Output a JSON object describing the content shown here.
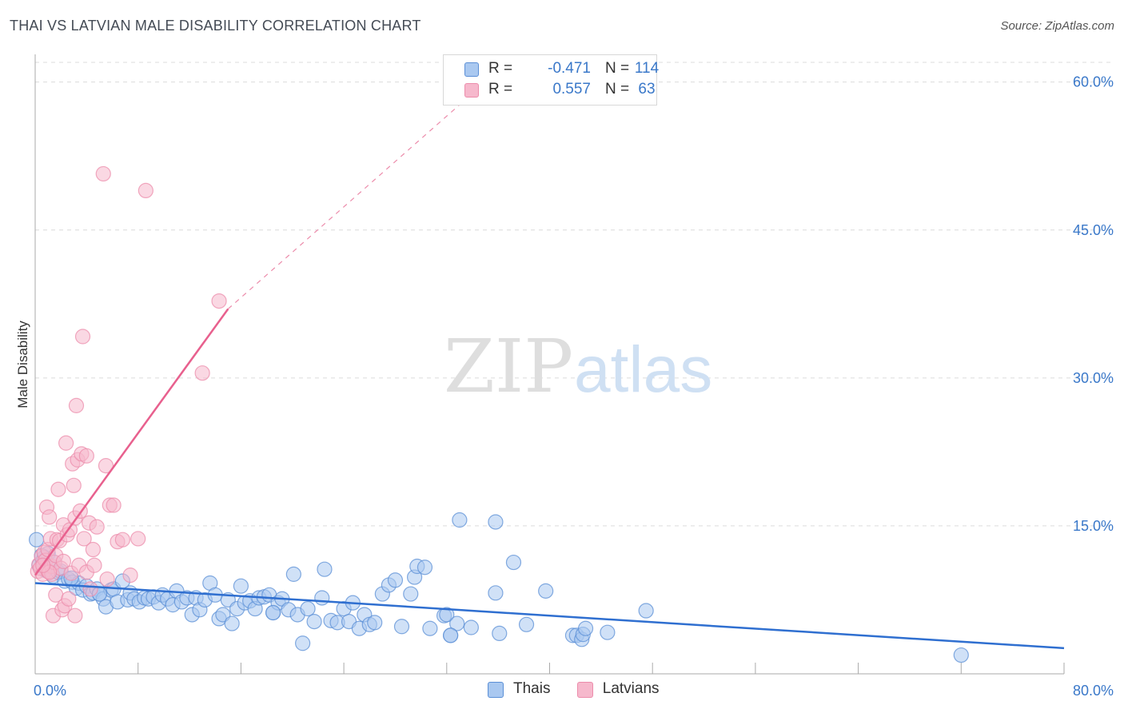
{
  "title": "THAI VS LATVIAN MALE DISABILITY CORRELATION CHART",
  "source": "Source: ZipAtlas.com",
  "watermark": {
    "left": "ZIP",
    "right": "atlas"
  },
  "colors": {
    "thais_fill": "#a9c8f0",
    "thais_stroke": "#5b8fd6",
    "thais_line": "#2f6fd0",
    "latvians_fill": "#f6b8cc",
    "latvians_stroke": "#ec8cab",
    "latvians_line": "#e8608e",
    "tick_text": "#3a78c9",
    "grid": "#dcdcdc"
  },
  "legend_top": {
    "rows": [
      {
        "r_label": "R =",
        "r_value": "-0.471",
        "n_label": "N =",
        "n_value": "114"
      },
      {
        "r_label": "R =",
        "r_value": "0.557",
        "n_label": "N =",
        "n_value": "63"
      }
    ]
  },
  "legend_bottom": {
    "items": [
      {
        "label": "Thais"
      },
      {
        "label": "Latvians"
      }
    ]
  },
  "chart_data": {
    "type": "scatter",
    "title": "THAI VS LATVIAN MALE DISABILITY CORRELATION CHART",
    "ylabel": "Male Disability",
    "xlabel": "",
    "xlim": [
      0,
      80
    ],
    "ylim": [
      0,
      62
    ],
    "x_tick_labels": [
      "0.0%",
      "80.0%"
    ],
    "y_ticks": [
      15,
      30,
      45,
      60
    ],
    "y_tick_labels": [
      "15.0%",
      "30.0%",
      "45.0%",
      "60.0%"
    ],
    "grid": true,
    "legend_position": "bottom-center",
    "series": [
      {
        "name": "Thais",
        "r": -0.471,
        "n": 114,
        "trendline": {
          "x": [
            0,
            80
          ],
          "y": [
            9.2,
            2.6
          ]
        },
        "points": [
          [
            0.1,
            13.6
          ],
          [
            0.3,
            11.0
          ],
          [
            0.5,
            12.0
          ],
          [
            0.6,
            11.4
          ],
          [
            0.8,
            10.5
          ],
          [
            1.0,
            12.2
          ],
          [
            1.1,
            10.9
          ],
          [
            1.4,
            9.9
          ],
          [
            1.5,
            11.3
          ],
          [
            1.8,
            10.3
          ],
          [
            2.0,
            10.4
          ],
          [
            2.3,
            9.4
          ],
          [
            2.6,
            9.6
          ],
          [
            2.9,
            9.3
          ],
          [
            3.2,
            8.7
          ],
          [
            3.4,
            9.2
          ],
          [
            3.7,
            8.5
          ],
          [
            4.0,
            8.9
          ],
          [
            4.3,
            8.1
          ],
          [
            4.5,
            8.2
          ],
          [
            4.8,
            8.6
          ],
          [
            5.0,
            8.1
          ],
          [
            5.3,
            7.6
          ],
          [
            5.5,
            6.8
          ],
          [
            5.9,
            8.5
          ],
          [
            6.1,
            8.6
          ],
          [
            6.4,
            7.3
          ],
          [
            6.8,
            9.4
          ],
          [
            7.2,
            7.5
          ],
          [
            7.4,
            8.2
          ],
          [
            7.7,
            7.6
          ],
          [
            8.1,
            7.3
          ],
          [
            8.5,
            7.7
          ],
          [
            8.8,
            7.6
          ],
          [
            9.2,
            7.8
          ],
          [
            9.6,
            7.2
          ],
          [
            9.9,
            8.0
          ],
          [
            10.3,
            7.6
          ],
          [
            10.7,
            7.0
          ],
          [
            11.0,
            8.4
          ],
          [
            11.4,
            7.3
          ],
          [
            11.8,
            7.7
          ],
          [
            12.2,
            6.0
          ],
          [
            12.5,
            7.7
          ],
          [
            12.8,
            6.5
          ],
          [
            13.2,
            7.5
          ],
          [
            13.6,
            9.2
          ],
          [
            14.0,
            8.0
          ],
          [
            14.3,
            5.6
          ],
          [
            14.6,
            6.0
          ],
          [
            15.0,
            7.5
          ],
          [
            15.3,
            5.1
          ],
          [
            15.7,
            6.6
          ],
          [
            16.0,
            8.9
          ],
          [
            16.3,
            7.2
          ],
          [
            16.7,
            7.4
          ],
          [
            17.1,
            6.6
          ],
          [
            17.4,
            7.7
          ],
          [
            17.8,
            7.8
          ],
          [
            18.2,
            8.0
          ],
          [
            18.5,
            6.2
          ],
          [
            18.9,
            7.2
          ],
          [
            19.2,
            7.6
          ],
          [
            19.7,
            6.5
          ],
          [
            20.1,
            10.1
          ],
          [
            20.4,
            6.0
          ],
          [
            20.8,
            3.1
          ],
          [
            21.2,
            6.6
          ],
          [
            21.7,
            5.3
          ],
          [
            22.3,
            7.7
          ],
          [
            22.5,
            10.6
          ],
          [
            23.0,
            5.4
          ],
          [
            23.5,
            5.2
          ],
          [
            24.0,
            6.6
          ],
          [
            24.4,
            5.3
          ],
          [
            24.7,
            7.2
          ],
          [
            25.2,
            4.6
          ],
          [
            25.6,
            6.0
          ],
          [
            26.0,
            5.0
          ],
          [
            26.4,
            5.2
          ],
          [
            27.0,
            8.1
          ],
          [
            27.5,
            9.0
          ],
          [
            28.0,
            9.5
          ],
          [
            28.5,
            4.8
          ],
          [
            29.2,
            8.1
          ],
          [
            29.5,
            9.8
          ],
          [
            29.7,
            10.9
          ],
          [
            30.3,
            10.8
          ],
          [
            30.7,
            4.6
          ],
          [
            31.8,
            5.9
          ],
          [
            32.0,
            6.0
          ],
          [
            32.3,
            3.9
          ],
          [
            32.8,
            5.1
          ],
          [
            33.0,
            15.6
          ],
          [
            33.9,
            4.7
          ],
          [
            35.8,
            15.4
          ],
          [
            36.1,
            4.1
          ],
          [
            35.8,
            8.2
          ],
          [
            37.2,
            11.3
          ],
          [
            38.2,
            5.0
          ],
          [
            39.7,
            8.4
          ],
          [
            41.8,
            3.9
          ],
          [
            42.1,
            3.9
          ],
          [
            42.5,
            3.5
          ],
          [
            42.6,
            4.0
          ],
          [
            42.8,
            4.6
          ],
          [
            44.5,
            4.2
          ],
          [
            47.5,
            6.4
          ],
          [
            72.0,
            1.9
          ],
          [
            32.3,
            3.9
          ],
          [
            18.5,
            6.2
          ],
          [
            5.0,
            8.1
          ],
          [
            2.8,
            9.7
          ],
          [
            0.7,
            11.8
          ]
        ]
      },
      {
        "name": "Latvians",
        "r": 0.557,
        "n": 63,
        "trendline": {
          "x": [
            0,
            15
          ],
          "y": [
            10.0,
            37.0
          ],
          "dashed_extension": {
            "x": [
              15,
              35
            ],
            "y": [
              37.0,
              60
            ]
          }
        },
        "points": [
          [
            0.2,
            10.4
          ],
          [
            0.3,
            11.1
          ],
          [
            0.4,
            10.7
          ],
          [
            0.5,
            11.9
          ],
          [
            0.6,
            10.1
          ],
          [
            0.7,
            12.3
          ],
          [
            0.8,
            11.5
          ],
          [
            0.9,
            16.9
          ],
          [
            1.0,
            12.6
          ],
          [
            1.0,
            10.4
          ],
          [
            1.1,
            15.9
          ],
          [
            1.2,
            13.7
          ],
          [
            1.3,
            10.9
          ],
          [
            1.3,
            10.1
          ],
          [
            1.4,
            5.9
          ],
          [
            1.5,
            11.3
          ],
          [
            1.6,
            12.0
          ],
          [
            1.6,
            8.0
          ],
          [
            1.7,
            13.6
          ],
          [
            1.8,
            18.7
          ],
          [
            1.9,
            13.5
          ],
          [
            2.0,
            10.7
          ],
          [
            2.1,
            6.5
          ],
          [
            2.2,
            15.1
          ],
          [
            2.2,
            11.4
          ],
          [
            2.3,
            6.9
          ],
          [
            2.4,
            23.4
          ],
          [
            2.5,
            14.1
          ],
          [
            2.6,
            7.6
          ],
          [
            2.7,
            14.6
          ],
          [
            2.8,
            10.2
          ],
          [
            2.9,
            21.3
          ],
          [
            3.0,
            19.1
          ],
          [
            3.1,
            15.8
          ],
          [
            3.2,
            27.2
          ],
          [
            3.3,
            21.7
          ],
          [
            3.1,
            5.9
          ],
          [
            3.4,
            11.0
          ],
          [
            3.5,
            16.5
          ],
          [
            3.6,
            22.3
          ],
          [
            3.7,
            34.2
          ],
          [
            3.8,
            13.7
          ],
          [
            4.0,
            22.1
          ],
          [
            4.0,
            10.3
          ],
          [
            4.2,
            15.3
          ],
          [
            4.3,
            8.6
          ],
          [
            4.5,
            12.6
          ],
          [
            4.6,
            11.0
          ],
          [
            4.8,
            14.9
          ],
          [
            5.3,
            50.7
          ],
          [
            5.5,
            21.1
          ],
          [
            5.6,
            9.6
          ],
          [
            5.8,
            17.1
          ],
          [
            6.1,
            17.1
          ],
          [
            6.4,
            13.4
          ],
          [
            6.8,
            13.6
          ],
          [
            7.4,
            10.0
          ],
          [
            8.0,
            13.7
          ],
          [
            8.6,
            49.0
          ],
          [
            13.0,
            30.5
          ],
          [
            14.3,
            37.8
          ],
          [
            1.1,
            10.3
          ],
          [
            0.6,
            11.0
          ]
        ]
      }
    ]
  }
}
